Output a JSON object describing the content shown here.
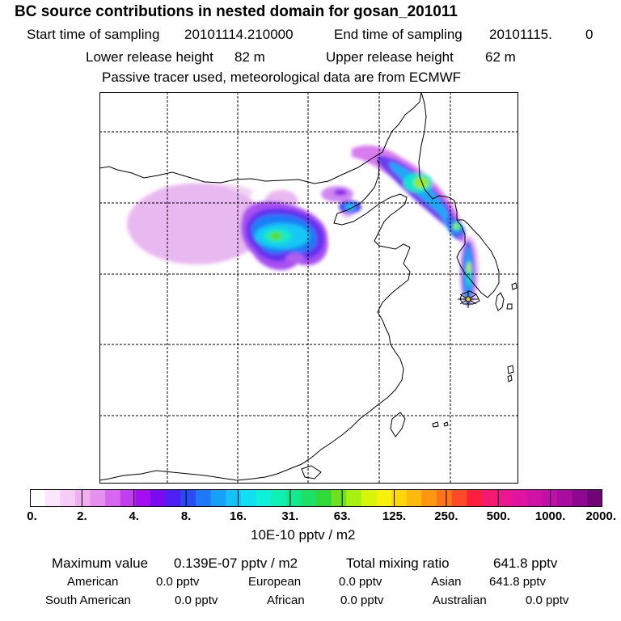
{
  "header": {
    "title": "BC  source contributions in nested domain for gosan_201011",
    "start_label": "Start time of sampling",
    "start_value": "20101114.210000",
    "end_label": "End time of sampling",
    "end_value": "20101115.",
    "end_extra": "0",
    "lower_label": "Lower release height",
    "lower_value": "82 m",
    "upper_label": "Upper release height",
    "upper_value": "62 m",
    "note": "Passive tracer used, meteorological data are from ECMWF"
  },
  "colorbar": {
    "colors": [
      "#ffffff",
      "#fbe6fb",
      "#f6cdf6",
      "#f0b0f0",
      "#e58fef",
      "#d866ef",
      "#c23cf0",
      "#a50ff0",
      "#7a0af0",
      "#4d20f5",
      "#2a4cf7",
      "#1f78f8",
      "#16a0f8",
      "#14c2f8",
      "#10e0f2",
      "#0ff0d8",
      "#10f0b4",
      "#16e890",
      "#1ee066",
      "#30d83a",
      "#6ee01e",
      "#a8f010",
      "#d8f40a",
      "#f6f00a",
      "#ffd80a",
      "#ffb80c",
      "#ff9612",
      "#ff7418",
      "#ff4a28",
      "#ff1e3c",
      "#f51a70",
      "#ec1690",
      "#e014a0",
      "#d012a8",
      "#c010a8",
      "#a80ca0",
      "#8c0890",
      "#700478"
    ],
    "tick_labels": [
      "0.",
      "2.",
      "4.",
      "8.",
      "16.",
      "31.",
      "63.",
      "125.",
      "250.",
      "500.",
      "1000.",
      "2000."
    ],
    "unit": "10E-10 pptv / m2"
  },
  "stats": {
    "max_label": "Maximum value",
    "max_value": "0.139E-07 pptv / m2",
    "total_label": "Total mixing ratio",
    "total_value": "641.8 pptv",
    "regions": [
      {
        "name": "American",
        "value": "0.0 pptv"
      },
      {
        "name": "European",
        "value": "0.0 pptv"
      },
      {
        "name": "Asian",
        "value": "641.8 pptv"
      },
      {
        "name": "South American",
        "value": "0.0 pptv"
      },
      {
        "name": "African",
        "value": "0.0 pptv"
      },
      {
        "name": "Australian",
        "value": "0.0 pptv"
      }
    ]
  }
}
